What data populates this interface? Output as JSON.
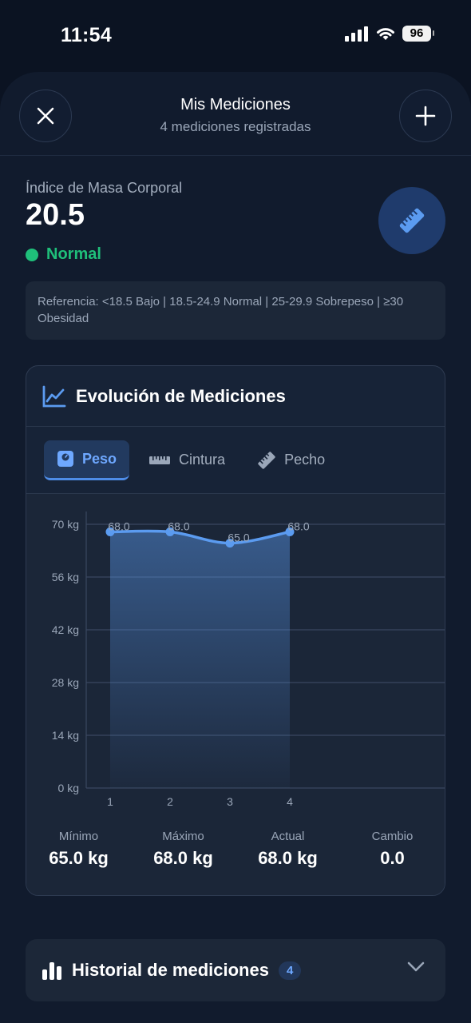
{
  "status_bar": {
    "time": "11:54",
    "battery": "96"
  },
  "header": {
    "title": "Mis Mediciones",
    "subtitle": "4 mediciones registradas"
  },
  "bmi": {
    "label": "Índice de Masa Corporal",
    "value": "20.5",
    "status": "Normal",
    "status_color": "#1fbf7a",
    "reference": "Referencia: <18.5 Bajo | 18.5-24.9 Normal | 25-29.9 Sobrepeso | ≥30 Obesidad"
  },
  "chart_card": {
    "title": "Evolución de Mediciones",
    "tabs": [
      {
        "label": "Peso",
        "icon": "scale-icon",
        "active": true
      },
      {
        "label": "Cintura",
        "icon": "ruler-icon",
        "active": false
      },
      {
        "label": "Pecho",
        "icon": "ruler-diagonal-icon",
        "active": false
      }
    ]
  },
  "chart_data": {
    "type": "area",
    "x": [
      "1",
      "2",
      "3",
      "4"
    ],
    "series": [
      {
        "values": [
          68.0,
          68.0,
          65.0,
          68.0
        ]
      }
    ],
    "point_labels": [
      "68.0",
      "68.0",
      "65.0",
      "68.0"
    ],
    "y_ticks": [
      "0 kg",
      "14 kg",
      "28 kg",
      "42 kg",
      "56 kg",
      "70 kg"
    ],
    "y_tick_values": [
      0,
      14,
      28,
      42,
      56,
      70
    ],
    "ylim": [
      0,
      70
    ],
    "grid": true,
    "color": "#5b9bf0"
  },
  "stats": [
    {
      "label": "Mínimo",
      "value": "65.0 kg"
    },
    {
      "label": "Máximo",
      "value": "68.0 kg"
    },
    {
      "label": "Actual",
      "value": "68.0 kg"
    },
    {
      "label": "Cambio",
      "value": "0.0"
    }
  ],
  "history": {
    "title": "Historial de mediciones",
    "count": "4"
  }
}
